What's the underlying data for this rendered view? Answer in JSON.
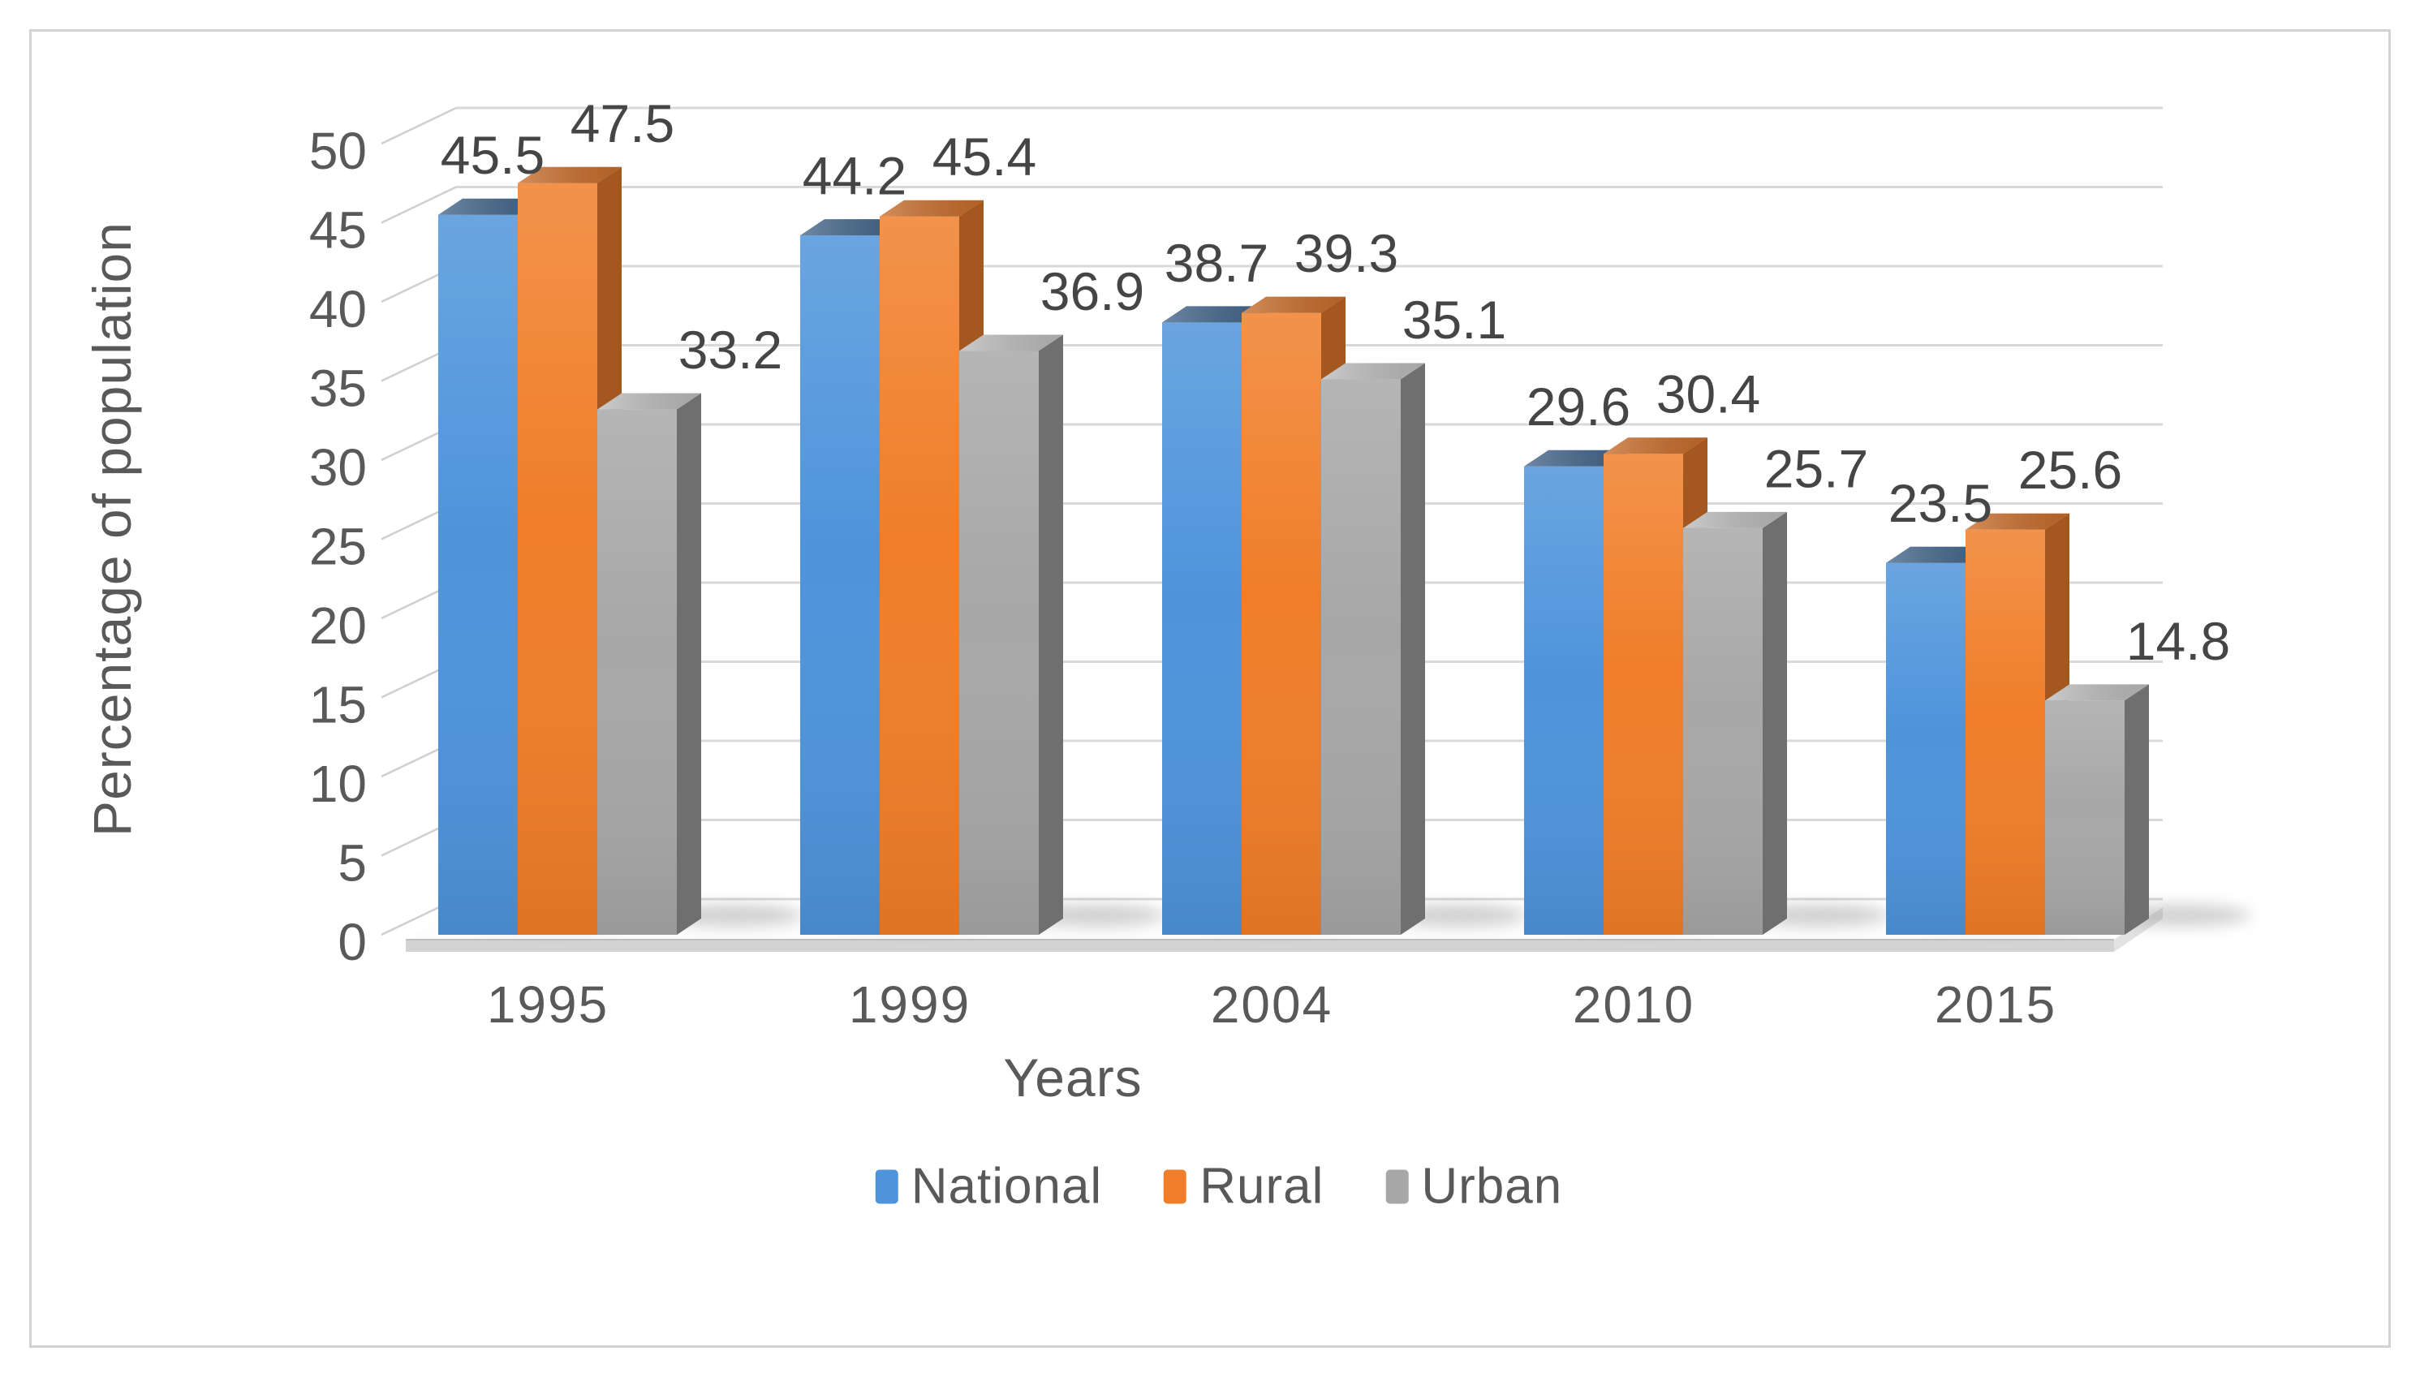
{
  "chart_data": {
    "type": "bar",
    "projection": "3d-clustered",
    "xlabel": "Years",
    "ylabel": "Percentage of population",
    "categories": [
      "1995",
      "1999",
      "2004",
      "2010",
      "2015"
    ],
    "series": [
      {
        "name": "National",
        "values": [
          45.5,
          44.2,
          38.7,
          29.6,
          23.5
        ],
        "color_front": "#4e94db",
        "color_top": "#44678c",
        "color_side": "#31567c"
      },
      {
        "name": "Rural",
        "values": [
          47.5,
          45.4,
          39.3,
          30.4,
          25.6
        ],
        "color_front": "#f07e29",
        "color_top": "#c96e2c",
        "color_side": "#a4581f"
      },
      {
        "name": "Urban",
        "values": [
          33.2,
          36.9,
          35.1,
          25.7,
          14.8
        ],
        "color_front": "#a7a7a7",
        "color_top": "#bdbdbd",
        "color_side": "#6f6f6f"
      }
    ],
    "ylim": [
      0,
      50
    ],
    "ytick_step": 5,
    "ytick_labels": [
      "0",
      "5",
      "10",
      "15",
      "20",
      "25",
      "30",
      "35",
      "40",
      "45",
      "50"
    ],
    "value_label_decimals": 1,
    "grid": true,
    "legend_position": "bottom"
  },
  "palette": {
    "gridline": "#d9d9d9",
    "tick_connector": "#cfcfcf",
    "axis_text": "#595959",
    "value_text": "#454545",
    "floor_band": "#d3d3d3",
    "floor_band_edge": "#bfbfbf",
    "floor_side": "#e2e2e2",
    "shadow": "#8a8a8a",
    "frame_border": "#d2d2d2",
    "background": "#ffffff"
  }
}
